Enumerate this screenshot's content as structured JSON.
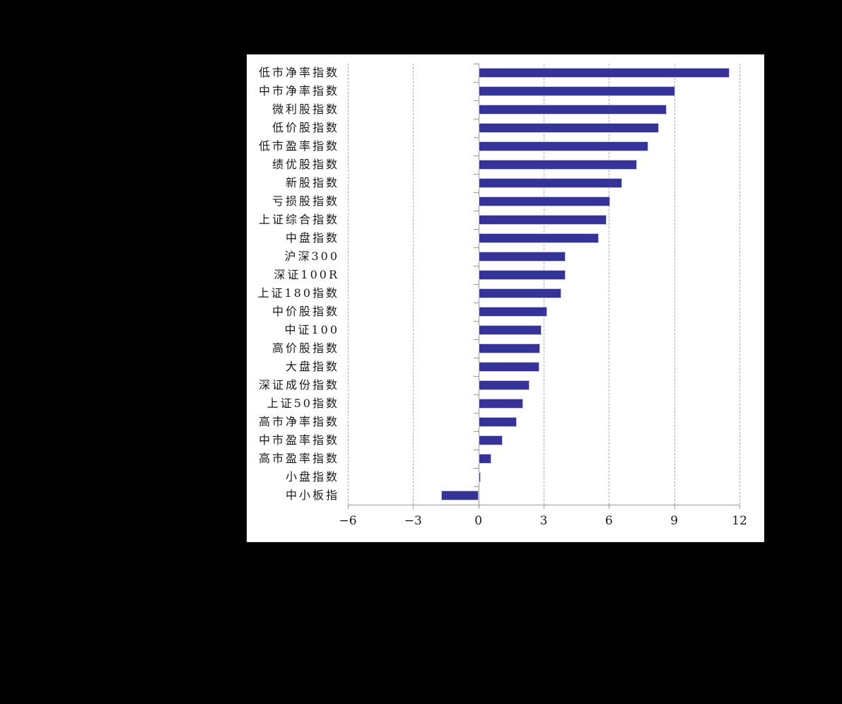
{
  "chart_data": {
    "type": "bar",
    "orientation": "horizontal",
    "title": "",
    "xlabel": "",
    "ylabel": "",
    "legend": "none",
    "grid": "vertical-dashed",
    "xlim": [
      -6,
      12
    ],
    "categories": [
      "低市净率指数",
      "中市净率指数",
      "微利股指数",
      "低价股指数",
      "低市盈率指数",
      "绩优股指数",
      "新股指数",
      "亏损股指数",
      "上证综合指数",
      "中盘指数",
      "沪深300",
      "深证100R",
      "上证180指数",
      "中价股指数",
      "中证100",
      "高价股指数",
      "大盘指数",
      "深证成份指数",
      "上证50指数",
      "高市净率指数",
      "中市盈率指数",
      "高市盈率指数",
      "小盘指数",
      "中小板指"
    ],
    "values": [
      11.55,
      9.05,
      8.65,
      8.3,
      7.8,
      7.3,
      6.6,
      6.05,
      5.9,
      5.55,
      4.0,
      4.0,
      3.8,
      3.15,
      2.9,
      2.85,
      2.8,
      2.35,
      2.05,
      1.75,
      1.1,
      0.6,
      0.1,
      -1.7
    ],
    "xticks": [
      {
        "value": -6,
        "label": "−6"
      },
      {
        "value": -3,
        "label": "−3"
      },
      {
        "value": 0,
        "label": "0"
      },
      {
        "value": 3,
        "label": "3"
      },
      {
        "value": 6,
        "label": "6"
      },
      {
        "value": 9,
        "label": "9"
      },
      {
        "value": 12,
        "label": "12"
      }
    ],
    "colors": {
      "bar_fill": "#333399",
      "bar_edge": "#c6c6de",
      "axis": "#9a9a9a",
      "gridline": "#ababab",
      "text": "#1a1a1a",
      "panel_background": "#ffffff",
      "page_background": "#000000"
    }
  }
}
